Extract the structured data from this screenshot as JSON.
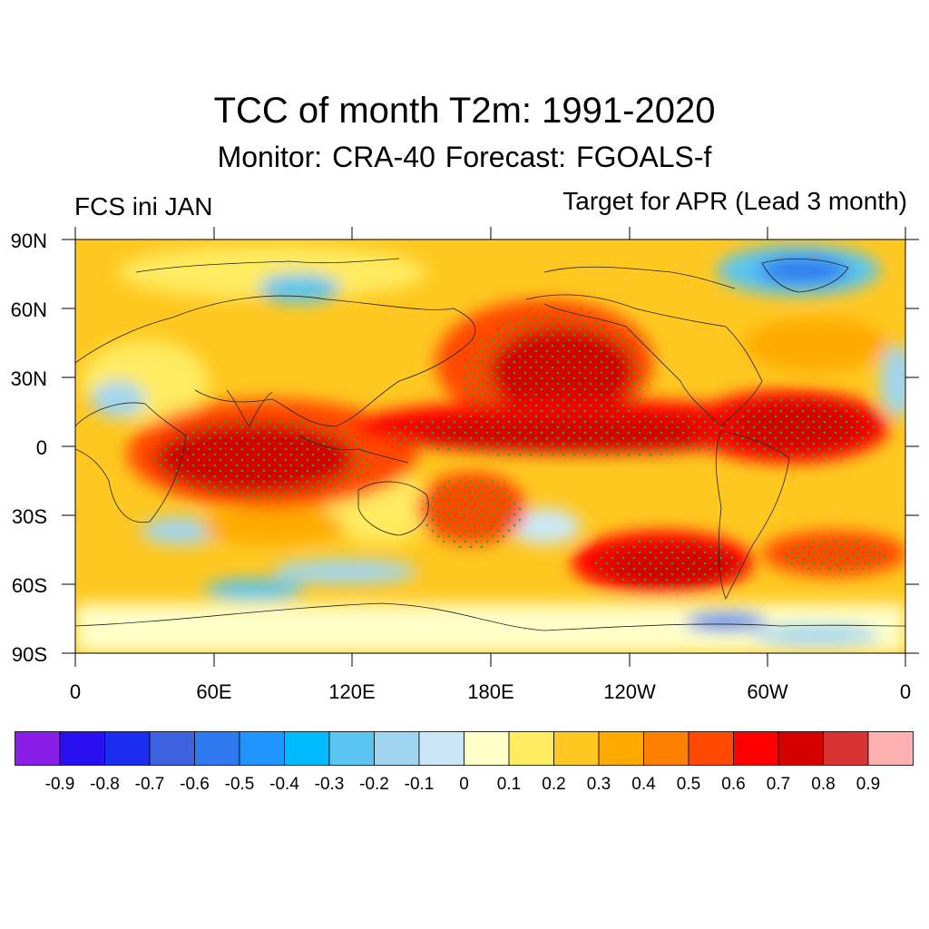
{
  "title": "TCC of month T2m: 1991-2020",
  "subtitle": "Monitor: CRA-40   Forecast: FGOALS-f",
  "left_label": "FCS ini JAN",
  "right_label": "Target for APR (Lead 3 month)",
  "map": {
    "projection": "cylindrical-equidistant",
    "lat_range": [
      -90,
      90
    ],
    "lon_range": [
      0,
      360
    ],
    "lat_ticks": [
      "90N",
      "60N",
      "30N",
      "0",
      "30S",
      "60S",
      "90S"
    ],
    "lon_ticks": [
      "0",
      "60E",
      "120E",
      "180E",
      "120W",
      "60W",
      "0"
    ],
    "stippling": "green dots mark statistically significant correlation",
    "features": [
      {
        "name": "Tropical Indian Ocean / Maritime Continent",
        "lat": [
          -25,
          20
        ],
        "lon": [
          45,
          130
        ],
        "value": 0.7
      },
      {
        "name": "North Pacific",
        "lat": [
          20,
          60
        ],
        "lon": [
          160,
          240
        ],
        "value": 0.7
      },
      {
        "name": "Central / Eastern Tropical Pacific",
        "lat": [
          -15,
          15
        ],
        "lon": [
          150,
          270
        ],
        "value": 0.75
      },
      {
        "name": "South Pacific (subtropics)",
        "lat": [
          -45,
          -10
        ],
        "lon": [
          150,
          215
        ],
        "value": 0.65
      },
      {
        "name": "South Pacific (midlatitudes)",
        "lat": [
          -65,
          -38
        ],
        "lon": [
          200,
          290
        ],
        "value": 0.7
      },
      {
        "name": "Tropical Atlantic",
        "lat": [
          -10,
          25
        ],
        "lon": [
          280,
          355
        ],
        "value": 0.7
      },
      {
        "name": "Greenland",
        "lat": [
          60,
          83
        ],
        "lon": [
          295,
          340
        ],
        "value": -0.6
      },
      {
        "name": "Southern Indian Ocean",
        "lat": [
          -60,
          -30
        ],
        "lon": [
          20,
          90
        ],
        "value": -0.25
      },
      {
        "name": "Antarctica (West)",
        "lat": [
          -80,
          -68
        ],
        "lon": [
          270,
          300
        ],
        "value": -0.4
      }
    ]
  },
  "colorbar": {
    "colors": [
      "#8a1ee6",
      "#2a0ff0",
      "#1c2cf0",
      "#3c62e0",
      "#2f7af0",
      "#1f95ff",
      "#00bbff",
      "#5ac5f0",
      "#a0d5f0",
      "#cbe7f7",
      "#ffffc8",
      "#ffeb60",
      "#ffc820",
      "#ffaa00",
      "#ff7f00",
      "#ff4800",
      "#ff0000",
      "#d60000",
      "#d93232",
      "#ffb0b0"
    ],
    "labels": [
      "-0.9",
      "-0.8",
      "-0.7",
      "-0.6",
      "-0.5",
      "-0.4",
      "-0.3",
      "-0.2",
      "-0.1",
      "0",
      "0.1",
      "0.2",
      "0.3",
      "0.4",
      "0.5",
      "0.6",
      "0.7",
      "0.8",
      "0.9"
    ]
  }
}
